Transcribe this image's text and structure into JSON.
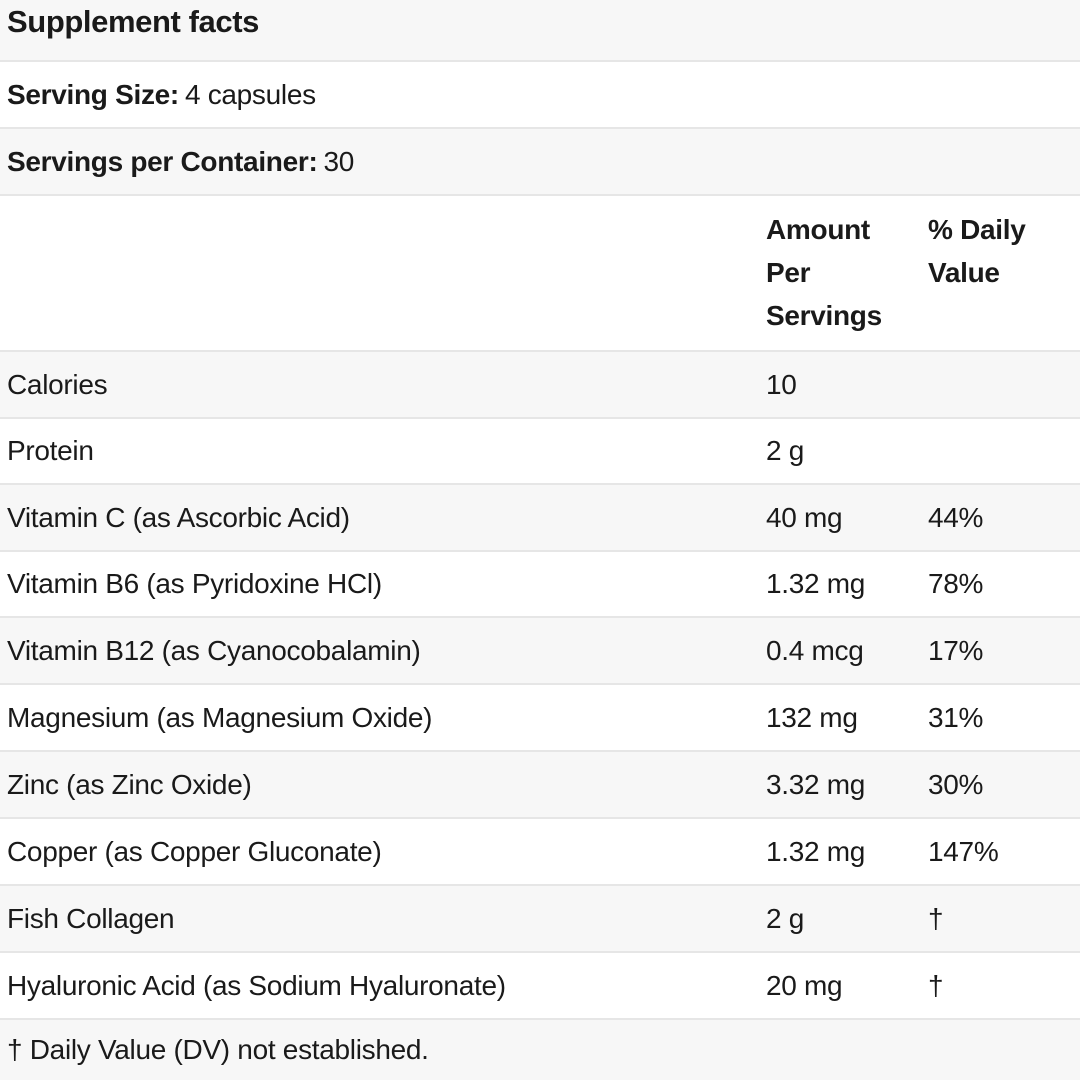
{
  "title": "Supplement facts",
  "serving_size": {
    "label": "Serving Size:",
    "value": "4 capsules"
  },
  "servings_per_container": {
    "label": "Servings per Container:",
    "value": "30"
  },
  "columns": {
    "amount": [
      "Amount",
      "Per",
      "Servings"
    ],
    "daily_value": [
      "% Daily",
      "Value"
    ]
  },
  "nutrients": [
    {
      "name": "Calories",
      "amount": "10",
      "dv": ""
    },
    {
      "name": "Protein",
      "amount": "2 g",
      "dv": ""
    },
    {
      "name": "Vitamin C (as Ascorbic Acid)",
      "amount": "40 mg",
      "dv": "44%"
    },
    {
      "name": "Vitamin B6 (as Pyridoxine HCl)",
      "amount": "1.32 mg",
      "dv": "78%"
    },
    {
      "name": "Vitamin B12 (as Cyanocobalamin)",
      "amount": "0.4 mcg",
      "dv": "17%"
    },
    {
      "name": "Magnesium (as Magnesium Oxide)",
      "amount": "132 mg",
      "dv": "31%"
    },
    {
      "name": "Zinc (as Zinc Oxide)",
      "amount": "3.32 mg",
      "dv": "30%"
    },
    {
      "name": "Copper (as Copper Gluconate)",
      "amount": "1.32 mg",
      "dv": "147%"
    },
    {
      "name": "Fish Collagen",
      "amount": "2 g",
      "dv": "†"
    },
    {
      "name": "Hyaluronic Acid (as Sodium Hyaluronate)",
      "amount": "20 mg",
      "dv": "†"
    }
  ],
  "footnote": "† Daily Value (DV) not established."
}
